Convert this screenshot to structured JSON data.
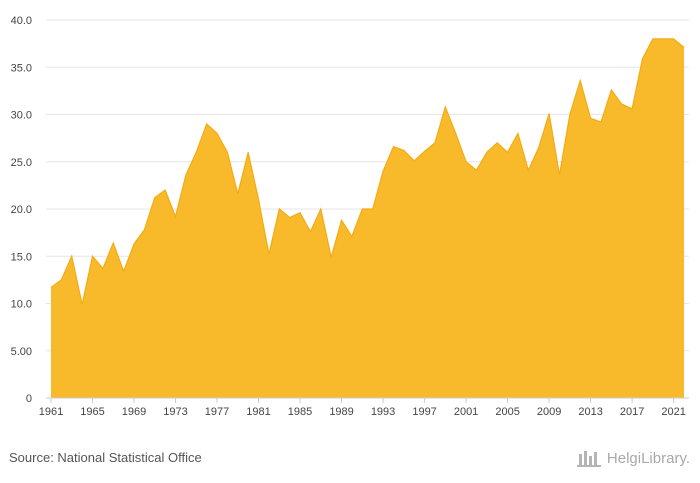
{
  "footer": {
    "source": "Source: National Statistical Office",
    "brand": "HelgiLibrary."
  },
  "chart_data": {
    "type": "area",
    "title": "",
    "xlabel": "",
    "ylabel": "",
    "ylim": [
      0,
      40
    ],
    "xlim": [
      1961,
      2022
    ],
    "grid": true,
    "legend": "none",
    "fill_color": "#f8b92b",
    "line_color": "#f3ac14",
    "y_ticks": [
      "0",
      "5.00",
      "10.0",
      "15.0",
      "20.0",
      "25.0",
      "30.0",
      "35.0",
      "40.0"
    ],
    "x_ticks": [
      "1961",
      "1965",
      "1969",
      "1973",
      "1977",
      "1981",
      "1985",
      "1989",
      "1993",
      "1997",
      "2001",
      "2005",
      "2009",
      "2013",
      "2017",
      "2021"
    ],
    "series": [
      {
        "x": [
          1961,
          1962,
          1963,
          1964,
          1965,
          1966,
          1967,
          1968,
          1969,
          1970,
          1971,
          1972,
          1973,
          1974,
          1975,
          1976,
          1977,
          1978,
          1979,
          1980,
          1981,
          1982,
          1983,
          1984,
          1985,
          1986,
          1987,
          1988,
          1989,
          1990,
          1991,
          1992,
          1993,
          1994,
          1995,
          1996,
          1997,
          1998,
          1999,
          2000,
          2001,
          2002,
          2003,
          2004,
          2005,
          2006,
          2007,
          2008,
          2009,
          2010,
          2011,
          2012,
          2013,
          2014,
          2015,
          2016,
          2017,
          2018,
          2019,
          2020,
          2021,
          2022
        ],
        "values": [
          11.7,
          12.5,
          15.0,
          9.9,
          15.0,
          13.7,
          16.4,
          13.4,
          16.3,
          17.8,
          21.2,
          22.0,
          19.2,
          23.6,
          26.0,
          29.0,
          28.0,
          26.0,
          21.6,
          26.0,
          21.0,
          15.2,
          20.0,
          19.1,
          19.6,
          17.6,
          20.0,
          14.9,
          18.8,
          17.1,
          20.0,
          20.0,
          24.0,
          26.6,
          26.2,
          25.1,
          26.1,
          27.0,
          30.8,
          28.0,
          25.0,
          24.1,
          26.0,
          27.0,
          26.0,
          28.0,
          24.1,
          26.5,
          30.1,
          23.6,
          30.0,
          33.6,
          29.6,
          29.2,
          32.6,
          31.1,
          30.6,
          35.9,
          38.0,
          38.0,
          38.0,
          37.1
        ]
      }
    ]
  }
}
